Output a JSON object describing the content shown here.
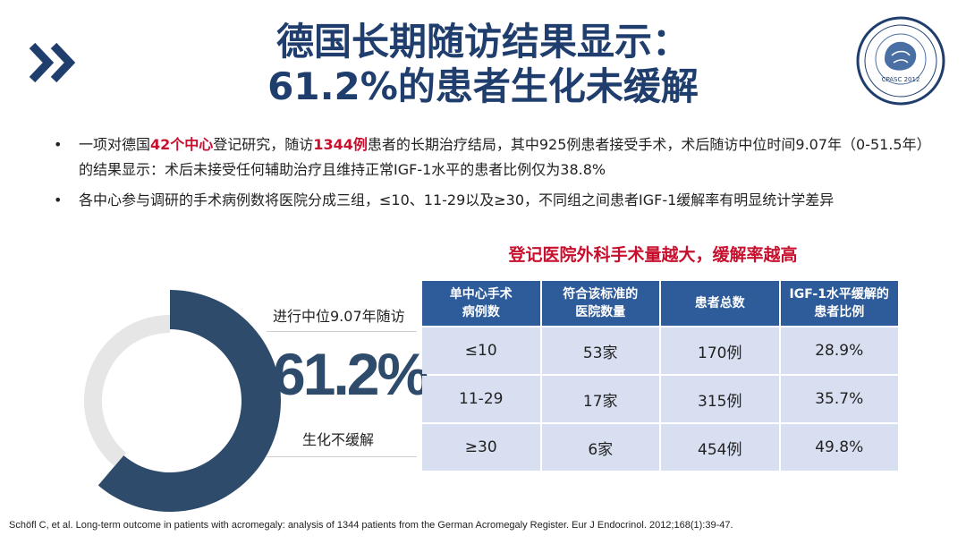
{
  "slide": {
    "title_line1": "德国长期随访结果显示：",
    "title_line2": "61.2%的患者生化未缓解",
    "logo_text": "CPASC 2012"
  },
  "bullets": [
    {
      "pre": "一项对德国",
      "hl1": "42个中心",
      "mid": "登记研究，随访",
      "hl2": "1344例",
      "post": "患者的长期治疗结局，其中925例患者接受手术，术后随访中位时间9.07年（0-51.5年）的结果显示：术后未接受任何辅助治疗且维持正常IGF-1水平的患者比例仅为38.8%"
    },
    {
      "text": "各中心参与调研的手术病例数将医院分成三组，≤10、11-29以及≥30，不同组之间患者IGF-1缓解率有明显统计学差异"
    }
  ],
  "chart_data": {
    "type": "pie",
    "value_label": "61.2%",
    "caption_top": "进行中位9.07年随访",
    "caption_bottom": "生化不缓解",
    "values": [
      61.2,
      38.8
    ],
    "colors": {
      "main": "#2e4b6b",
      "rest": "#e6e6e6"
    }
  },
  "table": {
    "title": "登记医院外科手术量越大，缓解率越高",
    "headers": [
      "单中心手术\n病例数",
      "符合该标准的\n医院数量",
      "患者总数",
      "IGF-1水平缓解的\n患者比例"
    ],
    "rows": [
      [
        "≤10",
        "53家",
        "170例",
        "28.9%"
      ],
      [
        "11-29",
        "17家",
        "315例",
        "35.7%"
      ],
      [
        "≥30",
        "6家",
        "454例",
        "49.8%"
      ]
    ]
  },
  "footnote": "Schöfl C, et al. Long-term outcome in patients with acromegaly: analysis of 1344 patients from the German Acromegaly Register. Eur J Endocrinol. 2012;168(1):39-47."
}
